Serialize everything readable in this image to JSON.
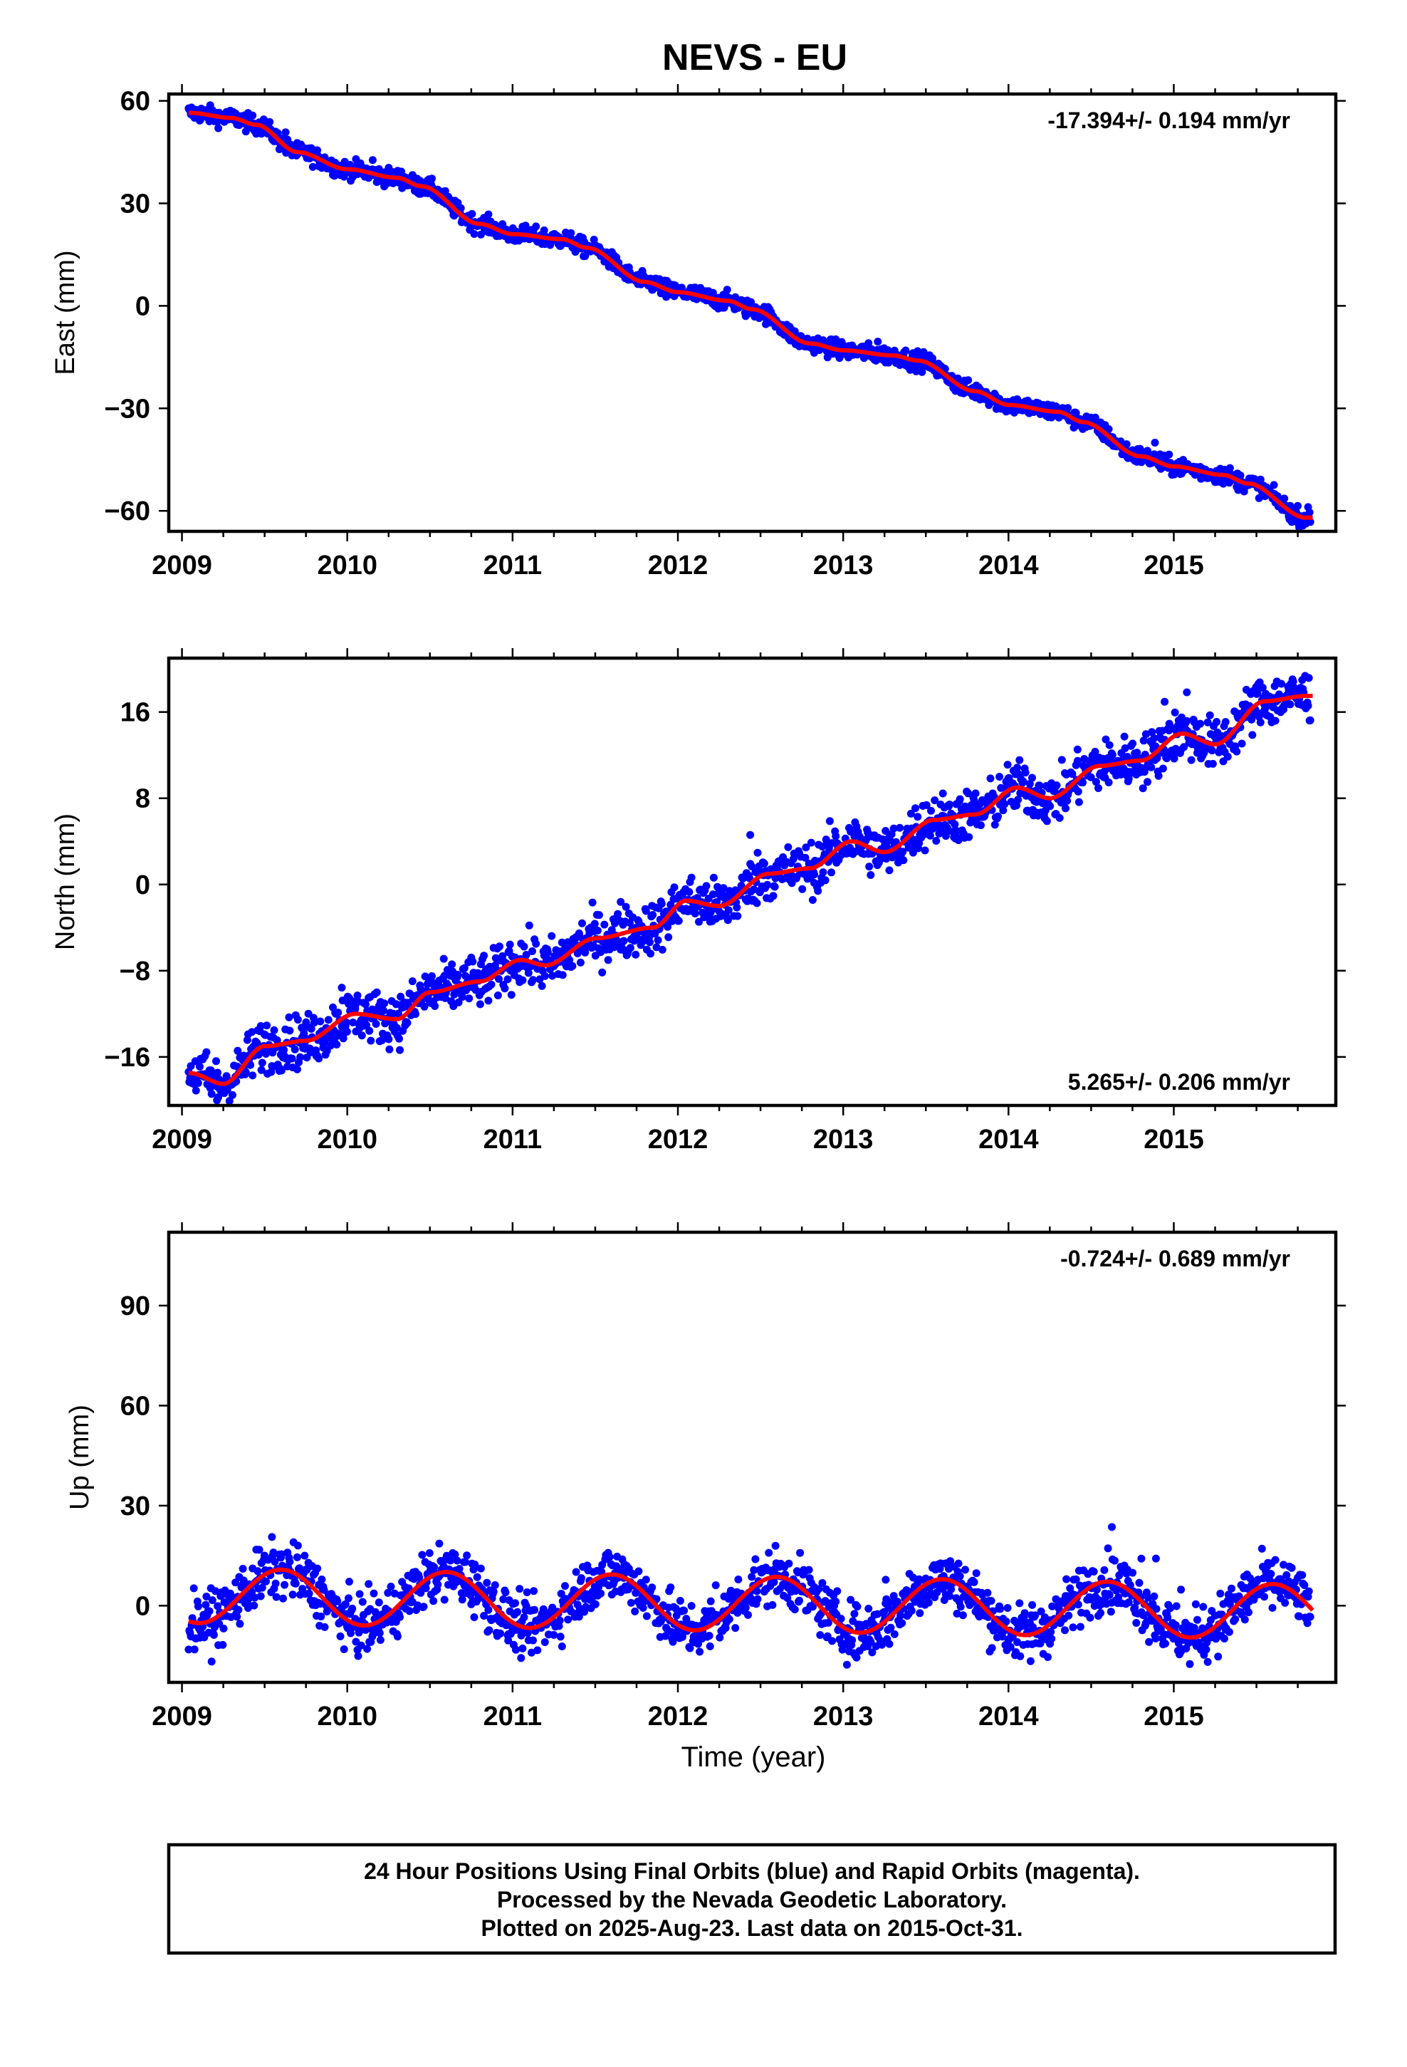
{
  "chart_data": {
    "title": "NEVS - EU",
    "xlabel": "Time (year)",
    "xlim": [
      2008.92,
      2015.98
    ],
    "x_ticks": [
      "2009",
      "2010",
      "2011",
      "2012",
      "2013",
      "2014",
      "2015"
    ],
    "grid": false,
    "colors": {
      "points": "#0000ff",
      "fit": "#ff0000"
    },
    "panels": [
      {
        "type": "scatter",
        "ylabel": "East (mm)",
        "ylim": [
          -66,
          62
        ],
        "y_ticks": [
          60,
          30,
          0,
          -30,
          -60
        ],
        "rate_text": "-17.394+/- 0.194 mm/yr",
        "rate_position": "top-right",
        "fit": {
          "x": [
            2009.05,
            2009.3,
            2009.45,
            2009.7,
            2010.0,
            2010.3,
            2010.45,
            2010.8,
            2011.0,
            2011.3,
            2011.45,
            2011.8,
            2012.0,
            2012.3,
            2012.45,
            2012.8,
            2013.0,
            2013.3,
            2013.45,
            2013.8,
            2014.0,
            2014.3,
            2014.45,
            2014.8,
            2015.0,
            2015.3,
            2015.45,
            2015.8
          ],
          "y": [
            56.5,
            55,
            53,
            45,
            40,
            37.5,
            35,
            24,
            21,
            19.5,
            17,
            7,
            4,
            1.5,
            -1,
            -11,
            -13,
            -14.5,
            -16,
            -25,
            -29,
            -31,
            -34,
            -44,
            -47,
            -49.5,
            -52,
            -62
          ]
        }
      },
      {
        "type": "scatter",
        "ylabel": "North (mm)",
        "ylim": [
          -20.5,
          21
        ],
        "y_ticks": [
          16,
          8,
          0,
          -8,
          -16
        ],
        "rate_text": "5.265+/- 0.206 mm/yr",
        "rate_position": "bottom-right",
        "fit": {
          "x": [
            2009.05,
            2009.25,
            2009.5,
            2009.75,
            2010.05,
            2010.3,
            2010.5,
            2010.8,
            2011.05,
            2011.2,
            2011.5,
            2011.85,
            2012.05,
            2012.25,
            2012.55,
            2012.8,
            2013.05,
            2013.25,
            2013.55,
            2013.8,
            2014.05,
            2014.25,
            2014.55,
            2014.8,
            2015.05,
            2015.25,
            2015.55,
            2015.8
          ],
          "y": [
            -17.5,
            -18.5,
            -15,
            -14.5,
            -12,
            -12.5,
            -10,
            -9,
            -7,
            -7.5,
            -5,
            -4,
            -1.5,
            -2,
            1,
            1.5,
            4,
            3,
            6,
            6.5,
            9,
            8,
            11,
            11.5,
            14,
            13,
            17,
            17.5
          ]
        }
      },
      {
        "type": "scatter",
        "ylabel": "Up (mm)",
        "ylim": [
          -23,
          112
        ],
        "y_ticks": [
          90,
          60,
          30,
          0
        ],
        "rate_text": "-0.724+/- 0.689 mm/yr",
        "rate_position": "top-right",
        "fit": {
          "amplitude": 8.2,
          "peak_phase": 0.6,
          "trend_per_year": -0.72,
          "offset": 0.6
        }
      }
    ]
  },
  "caption": {
    "line1": "24 Hour Positions Using Final Orbits (blue) and Rapid Orbits (magenta).",
    "line2": "Processed by the Nevada Geodetic Laboratory.",
    "line3": "Plotted on 2025-Aug-23. Last data on 2015-Oct-31."
  }
}
